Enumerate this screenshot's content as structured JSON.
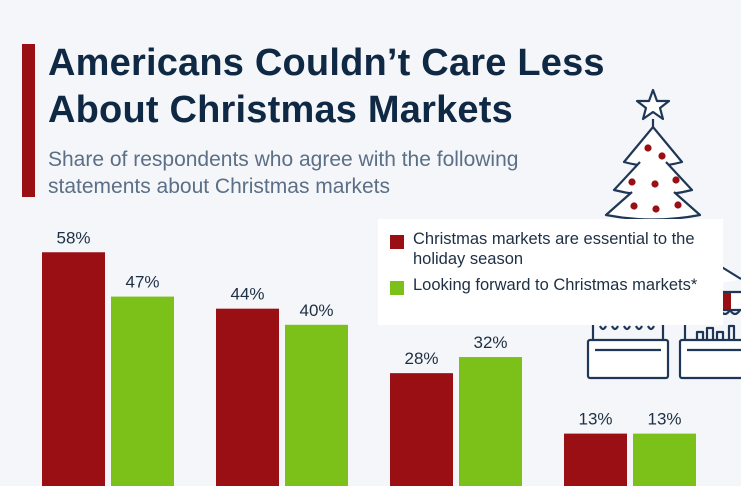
{
  "title": "Americans Couldn’t Care Less About Christmas Markets",
  "subtitle": "Share of respondents who agree with the following statements about Christmas markets",
  "legend": {
    "series1_label": "Christmas markets are essential to the holiday season",
    "series2_label": "Looking forward to Christmas markets*"
  },
  "colors": {
    "accent": "#9a0f14",
    "series1": "#9a0f14",
    "series2": "#7cc01a",
    "title": "#0f2844",
    "icon_stroke": "#1f3756"
  },
  "icons": [
    "christmas-tree-icon",
    "market-stall-icon"
  ],
  "chart_data": {
    "type": "bar",
    "title": "Americans Couldn’t Care Less About Christmas Markets",
    "categories": [
      "",
      "",
      "",
      ""
    ],
    "series": [
      {
        "name": "Christmas markets are essential to the holiday season",
        "values": [
          58,
          44,
          28,
          13
        ]
      },
      {
        "name": "Looking forward to Christmas markets*",
        "values": [
          47,
          40,
          32,
          13
        ]
      }
    ],
    "value_labels": [
      [
        "58%",
        "44%",
        "28%",
        "13%"
      ],
      [
        "47%",
        "40%",
        "32%",
        "13%"
      ]
    ],
    "ylim": [
      0,
      100
    ],
    "grid": false,
    "legend_position": "top-right"
  }
}
